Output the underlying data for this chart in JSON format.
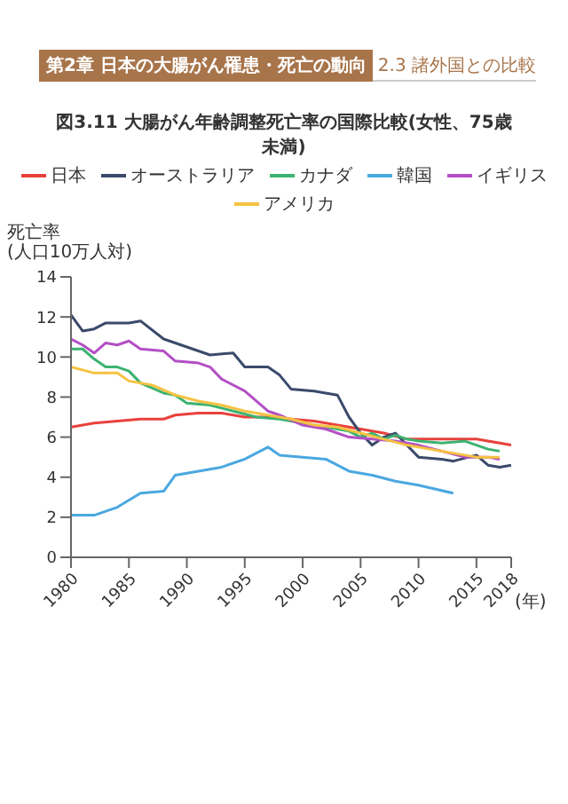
{
  "chart_data": {
    "type": "line",
    "title": "図3.11 大腸がん年齢調整死亡率の国際比較(女性、75歳未満)",
    "annotations": [
      "第2章 日本の大腸がん罹患・死亡の動向",
      "2.3 諸外国との比較"
    ],
    "ylabel": "死亡率\n(人口10万人対)",
    "xlabel": "(年)",
    "xlim": [
      1980,
      2018
    ],
    "xticks": [
      1980,
      1985,
      1990,
      1995,
      2000,
      2005,
      2010,
      2015,
      2018
    ],
    "ylim": [
      0,
      14
    ],
    "yticks": [
      0,
      2,
      4,
      6,
      8,
      10,
      12,
      14
    ],
    "legend": "top",
    "marker": "none",
    "line_style": "solid",
    "grid": false,
    "series": [
      {
        "name": "日本",
        "color": "#e8413c",
        "x": [
          1980,
          1982,
          1984,
          1986,
          1988,
          1989,
          1991,
          1993,
          1995,
          1997,
          1999,
          2001,
          2003,
          2005,
          2007,
          2009,
          2011,
          2013,
          2015,
          2017,
          2018
        ],
        "values": [
          6.5,
          6.7,
          6.8,
          6.9,
          6.9,
          7.1,
          7.2,
          7.2,
          7.0,
          7.0,
          6.9,
          6.8,
          6.6,
          6.4,
          6.2,
          5.9,
          5.9,
          5.9,
          5.9,
          5.7,
          5.6
        ]
      },
      {
        "name": "オーストラリア",
        "color": "#3b4a6b",
        "x": [
          1980,
          1981,
          1982,
          1983,
          1985,
          1986,
          1988,
          1989,
          1990,
          1992,
          1994,
          1995,
          1997,
          1998,
          1999,
          2001,
          2003,
          2004,
          2005,
          2006,
          2007,
          2008,
          2009,
          2010,
          2012,
          2013,
          2015,
          2016,
          2017,
          2018
        ],
        "values": [
          12.1,
          11.3,
          11.4,
          11.7,
          11.7,
          11.8,
          10.9,
          10.7,
          10.5,
          10.1,
          10.2,
          9.5,
          9.5,
          9.1,
          8.4,
          8.3,
          8.1,
          7.0,
          6.2,
          5.6,
          6.0,
          6.2,
          5.6,
          5.0,
          4.9,
          4.8,
          5.1,
          4.6,
          4.5,
          4.6
        ]
      },
      {
        "name": "カナダ",
        "color": "#3cb371",
        "x": [
          1980,
          1981,
          1982,
          1983,
          1984,
          1985,
          1986,
          1988,
          1989,
          1990,
          1992,
          1994,
          1996,
          1998,
          2000,
          2002,
          2004,
          2005,
          2006,
          2007,
          2008,
          2009,
          2010,
          2012,
          2014,
          2016,
          2017
        ],
        "values": [
          10.4,
          10.4,
          9.9,
          9.5,
          9.5,
          9.3,
          8.7,
          8.2,
          8.1,
          7.7,
          7.6,
          7.3,
          7.0,
          6.9,
          6.7,
          6.5,
          6.3,
          6.0,
          6.2,
          5.9,
          6.1,
          5.9,
          5.8,
          5.7,
          5.8,
          5.4,
          5.3
        ]
      },
      {
        "name": "韓国",
        "color": "#4aa8e0",
        "x": [
          1980,
          1982,
          1984,
          1986,
          1988,
          1989,
          1991,
          1993,
          1995,
          1997,
          1998,
          2000,
          2002,
          2004,
          2006,
          2008,
          2010,
          2013
        ],
        "values": [
          2.1,
          2.1,
          2.5,
          3.2,
          3.3,
          4.1,
          4.3,
          4.5,
          4.9,
          5.5,
          5.1,
          5.0,
          4.9,
          4.3,
          4.1,
          3.8,
          3.6,
          3.2
        ]
      },
      {
        "name": "イギリス",
        "color": "#b34fc4",
        "x": [
          1980,
          1981,
          1982,
          1983,
          1984,
          1985,
          1986,
          1988,
          1989,
          1991,
          1992,
          1993,
          1995,
          1996,
          1997,
          1998,
          2000,
          2002,
          2004,
          2006,
          2008,
          2010,
          2012,
          2014,
          2016,
          2017
        ],
        "values": [
          10.9,
          10.6,
          10.2,
          10.7,
          10.6,
          10.8,
          10.4,
          10.3,
          9.8,
          9.7,
          9.5,
          8.9,
          8.3,
          7.8,
          7.3,
          7.1,
          6.6,
          6.4,
          6.0,
          5.9,
          5.8,
          5.6,
          5.3,
          5.0,
          5.0,
          4.9
        ]
      },
      {
        "name": "アメリカ",
        "color": "#f5c242",
        "x": [
          1980,
          1982,
          1984,
          1985,
          1987,
          1989,
          1991,
          1993,
          1995,
          1997,
          1999,
          2001,
          2003,
          2005,
          2007,
          2009,
          2011,
          2013,
          2015,
          2017
        ],
        "values": [
          9.5,
          9.2,
          9.2,
          8.8,
          8.6,
          8.1,
          7.8,
          7.6,
          7.3,
          7.1,
          6.9,
          6.6,
          6.5,
          6.2,
          5.9,
          5.6,
          5.4,
          5.2,
          5.0,
          5.0
        ]
      }
    ]
  }
}
